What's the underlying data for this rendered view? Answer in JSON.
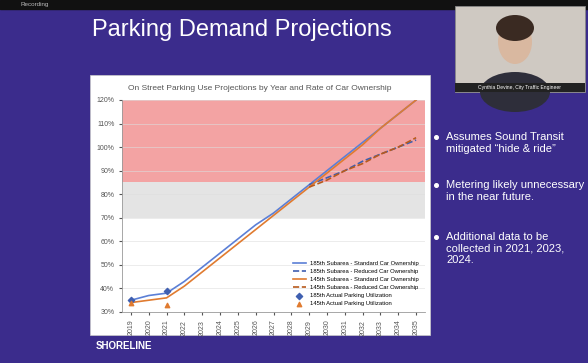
{
  "header": {
    "recording": "Recording"
  },
  "presenter": {
    "name": "Cynthia Devine, City Traffic Engineer"
  },
  "slide": {
    "title": "Parking Demand Projections",
    "bullets": [
      "Assumes Sound Transit mitigated “hide & ride”",
      "Metering likely unnecessary in the near future.",
      "Additional data to be collected in 2021, 2023, 2024."
    ],
    "logo": "SHORELINE"
  },
  "chart_data": {
    "type": "line",
    "title": "On Street Parking Use Projections by Year and Rate of Car Ownership",
    "categories": [
      "2019",
      "2020",
      "2021",
      "2022",
      "2023",
      "2024",
      "2025",
      "2026",
      "2027",
      "2028",
      "2029",
      "2030",
      "2031",
      "2032",
      "2033",
      "2034",
      "2035"
    ],
    "ylim": [
      30,
      120
    ],
    "yticks": [
      {
        "value": 30,
        "label": "30%"
      },
      {
        "value": 40,
        "label": "40%"
      },
      {
        "value": 50,
        "label": "50%"
      },
      {
        "value": 60,
        "label": "60%"
      },
      {
        "value": 70,
        "label": "70%"
      },
      {
        "value": 80,
        "label": "80%"
      },
      {
        "value": 90,
        "label": "90%"
      },
      {
        "value": 100,
        "label": "100%"
      },
      {
        "value": 110,
        "label": "110%"
      },
      {
        "value": 120,
        "label": "120%"
      }
    ],
    "grid": false,
    "legend": "lower right",
    "shaded_ranges": [
      {
        "from": 70,
        "to": 85,
        "color": "#e4e4e4"
      },
      {
        "from": 85,
        "to": 120,
        "color": "#f3a3a3"
      }
    ],
    "series": [
      {
        "name": "185th Subarea - Standard Car Ownership",
        "color": "#5b7fd6",
        "type": "line",
        "line_style": "solid",
        "values": [
          35,
          37,
          38,
          43,
          49,
          55,
          61,
          67,
          72,
          78,
          84,
          90,
          96,
          102,
          108,
          114,
          120
        ]
      },
      {
        "name": "185th Subarea - Reduced Car Ownership",
        "color": "#3f5fb0",
        "type": "line",
        "line_style": "dashed",
        "values": [
          null,
          null,
          null,
          null,
          null,
          null,
          null,
          null,
          null,
          null,
          84,
          87,
          90,
          94,
          97,
          100,
          103
        ]
      },
      {
        "name": "145th Subarea - Standard Car Ownership",
        "color": "#e07b30",
        "type": "line",
        "line_style": "solid",
        "values": [
          34,
          35,
          36,
          41,
          47,
          53,
          59,
          65,
          71,
          77,
          83,
          89,
          95,
          101,
          108,
          114,
          120
        ]
      },
      {
        "name": "145th Subarea - Reduced Car Ownership",
        "color": "#b85a1c",
        "type": "line",
        "line_style": "dashed",
        "values": [
          null,
          null,
          null,
          null,
          null,
          null,
          null,
          null,
          null,
          null,
          83,
          86,
          90,
          93,
          97,
          100,
          104
        ]
      },
      {
        "name": "185th Actual Parking Utilization",
        "color": "#3f5fb0",
        "type": "scatter",
        "marker": "diamond",
        "values": [
          35,
          null,
          39,
          null,
          null,
          null,
          null,
          null,
          null,
          null,
          null,
          null,
          null,
          null,
          null,
          null,
          null
        ]
      },
      {
        "name": "145th Actual Parking Utilization",
        "color": "#e07b30",
        "type": "scatter",
        "marker": "triangle",
        "values": [
          34,
          null,
          33,
          null,
          null,
          null,
          null,
          null,
          null,
          null,
          null,
          null,
          null,
          null,
          null,
          null,
          null
        ]
      }
    ]
  }
}
